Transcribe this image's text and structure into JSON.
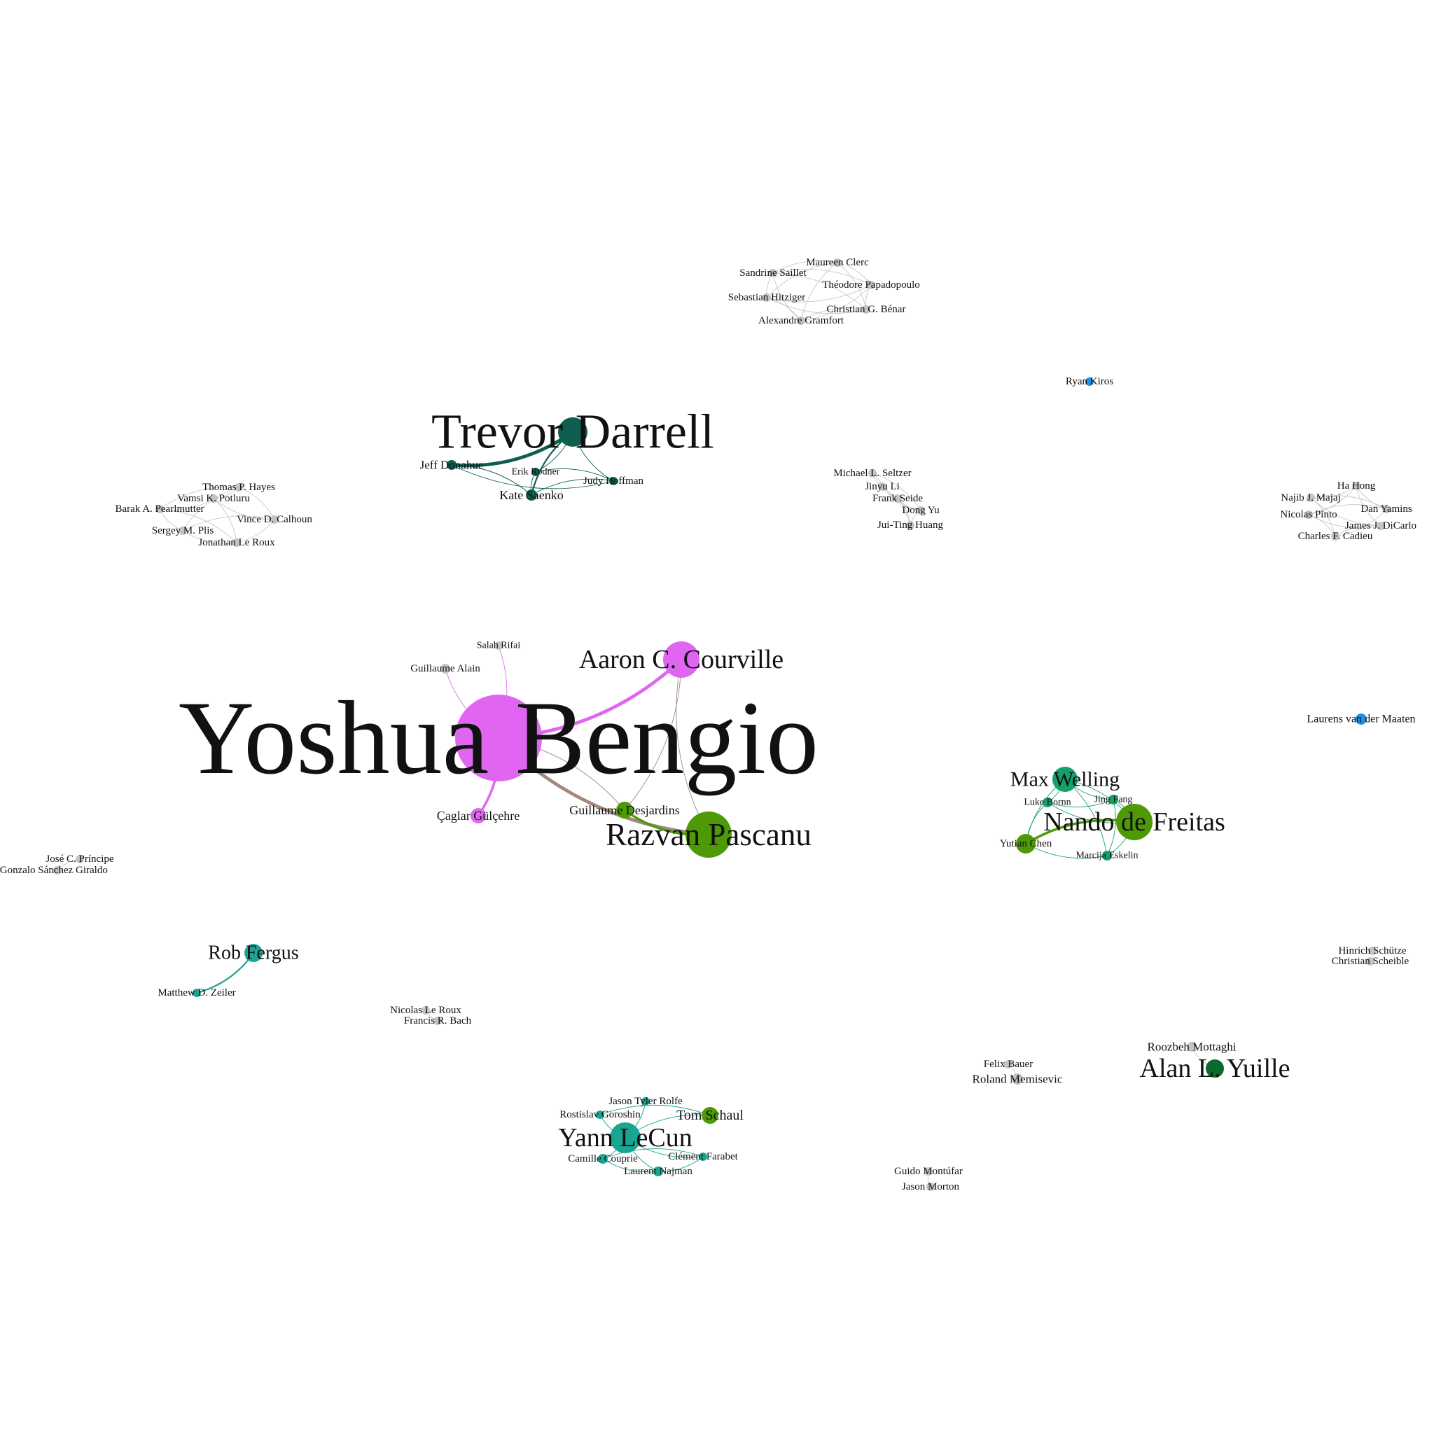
{
  "colors": {
    "background": "#ffffff",
    "gray": "#c4c4c4",
    "grayEdge": "#c8c8c8",
    "magenta": "#e066f2",
    "darkTeal": "#0e5f4f",
    "olive": "#4e9a06",
    "teal": "#1aa592",
    "green": "#15a06a",
    "darkGreen": "#0b6b2e",
    "blue": "#1e90e6",
    "brown": "#a2897e"
  },
  "nodes": [
    {
      "id": "bengio",
      "label": "Yoshua Bengio",
      "group": "magenta"
    },
    {
      "id": "courville",
      "label": "Aaron C. Courville",
      "group": "magenta"
    },
    {
      "id": "gulcehre",
      "label": "Çaglar Gülçehre",
      "group": "magenta"
    },
    {
      "id": "rifai",
      "label": "Salah Rifai",
      "group": "gray"
    },
    {
      "id": "alain",
      "label": "Guillaume Alain",
      "group": "gray"
    },
    {
      "id": "pascanu",
      "label": "Razvan Pascanu",
      "group": "olive"
    },
    {
      "id": "desjardins",
      "label": "Guillaume Desjardins",
      "group": "olive"
    },
    {
      "id": "darrell",
      "label": "Trevor Darrell",
      "group": "darkTeal"
    },
    {
      "id": "donahue",
      "label": "Jeff Donahue",
      "group": "darkTeal"
    },
    {
      "id": "rodner",
      "label": "Erik Rodner",
      "group": "darkTeal"
    },
    {
      "id": "saenko",
      "label": "Kate Saenko",
      "group": "darkTeal"
    },
    {
      "id": "hoffman",
      "label": "Judy Hoffman",
      "group": "darkTeal"
    },
    {
      "id": "clerc",
      "label": "Maureen Clerc",
      "group": "gray"
    },
    {
      "id": "saillet",
      "label": "Sandrine Saillet",
      "group": "gray"
    },
    {
      "id": "papadopoulo",
      "label": "Théodore Papadopoulo",
      "group": "gray"
    },
    {
      "id": "hitziger",
      "label": "Sebastian Hitziger",
      "group": "gray"
    },
    {
      "id": "benar",
      "label": "Christian G. Bénar",
      "group": "gray"
    },
    {
      "id": "gramfort",
      "label": "Alexandre Gramfort",
      "group": "gray"
    },
    {
      "id": "kiros",
      "label": "Ryan Kiros",
      "group": "blue"
    },
    {
      "id": "maaten",
      "label": "Laurens van der Maaten",
      "group": "blue"
    },
    {
      "id": "hayes",
      "label": "Thomas P. Hayes",
      "group": "gray"
    },
    {
      "id": "potluru",
      "label": "Vamsi K. Potluru",
      "group": "gray"
    },
    {
      "id": "pearlmutter",
      "label": "Barak A. Pearlmutter",
      "group": "gray"
    },
    {
      "id": "calhoun",
      "label": "Vince D. Calhoun",
      "group": "gray"
    },
    {
      "id": "plis",
      "label": "Sergey M. Plis",
      "group": "gray"
    },
    {
      "id": "leroux_j",
      "label": "Jonathan Le Roux",
      "group": "gray"
    },
    {
      "id": "seltzer",
      "label": "Michael L. Seltzer",
      "group": "gray"
    },
    {
      "id": "jinyuli",
      "label": "Jinyu Li",
      "group": "gray"
    },
    {
      "id": "seide",
      "label": "Frank Seide",
      "group": "gray"
    },
    {
      "id": "dongyu",
      "label": "Dong Yu",
      "group": "gray"
    },
    {
      "id": "huang",
      "label": "Jui-Ting Huang",
      "group": "gray"
    },
    {
      "id": "hahong",
      "label": "Ha Hong",
      "group": "gray"
    },
    {
      "id": "majaj",
      "label": "Najib J. Majaj",
      "group": "gray"
    },
    {
      "id": "yamins",
      "label": "Dan Yamins",
      "group": "gray"
    },
    {
      "id": "pinto",
      "label": "Nicolas Pinto",
      "group": "gray"
    },
    {
      "id": "dicarlo",
      "label": "James J. DiCarlo",
      "group": "gray"
    },
    {
      "id": "cadieu",
      "label": "Charles F. Cadieu",
      "group": "gray"
    },
    {
      "id": "welling",
      "label": "Max Welling",
      "group": "green"
    },
    {
      "id": "bornn",
      "label": "Luke Bornn",
      "group": "green"
    },
    {
      "id": "jingfang",
      "label": "Jing Fang",
      "group": "green"
    },
    {
      "id": "freitas",
      "label": "Nando de Freitas",
      "group": "olive"
    },
    {
      "id": "yutian",
      "label": "Yutian Chen",
      "group": "olive"
    },
    {
      "id": "eskelin",
      "label": "Marcija Eskelin",
      "group": "green"
    },
    {
      "id": "principe",
      "label": "José C. Príncipe",
      "group": "gray"
    },
    {
      "id": "giraldo",
      "label": "s Gonzalo Sánchez Giraldo",
      "group": "gray"
    },
    {
      "id": "fergus",
      "label": "Rob Fergus",
      "group": "teal"
    },
    {
      "id": "zeiler",
      "label": "Matthew D. Zeiler",
      "group": "teal"
    },
    {
      "id": "nleroux",
      "label": "Nicolas Le Roux",
      "group": "gray"
    },
    {
      "id": "bach",
      "label": "Francis R. Bach",
      "group": "gray"
    },
    {
      "id": "schutze",
      "label": "Hinrich Schütze",
      "group": "gray"
    },
    {
      "id": "scheible",
      "label": "Christian Scheible",
      "group": "gray"
    },
    {
      "id": "mottaghi",
      "label": "Roozbeh Mottaghi",
      "group": "gray"
    },
    {
      "id": "yuille",
      "label": "Alan L. Yuille",
      "group": "darkGreen"
    },
    {
      "id": "bauer",
      "label": "Felix Bauer",
      "group": "gray"
    },
    {
      "id": "memisevic",
      "label": "Roland Memisevic",
      "group": "gray"
    },
    {
      "id": "rolfe",
      "label": "Jason Tyler Rolfe",
      "group": "teal"
    },
    {
      "id": "goroshin",
      "label": "Rostislav Goroshin",
      "group": "teal"
    },
    {
      "id": "schaul",
      "label": "Tom Schaul",
      "group": "olive"
    },
    {
      "id": "lecun",
      "label": "Yann LeCun",
      "group": "teal"
    },
    {
      "id": "farabet",
      "label": "Clément Farabet",
      "group": "teal"
    },
    {
      "id": "couprie",
      "label": "Camille Couprie",
      "group": "teal"
    },
    {
      "id": "najman",
      "label": "Laurent Najman",
      "group": "teal"
    },
    {
      "id": "montufar",
      "label": "Guido Montúfar",
      "group": "gray"
    },
    {
      "id": "morton",
      "label": "Jason Morton",
      "group": "gray"
    }
  ],
  "edges": [
    {
      "source": "bengio",
      "target": "courville",
      "weight": 4,
      "color": "magenta"
    },
    {
      "source": "bengio",
      "target": "gulcehre",
      "weight": 3,
      "color": "magenta"
    },
    {
      "source": "bengio",
      "target": "rifai",
      "weight": 1,
      "color": "magenta"
    },
    {
      "source": "bengio",
      "target": "alain",
      "weight": 1,
      "color": "magenta"
    },
    {
      "source": "bengio",
      "target": "pascanu",
      "weight": 4,
      "color": "brown"
    },
    {
      "source": "bengio",
      "target": "desjardins",
      "weight": 1,
      "color": "brown"
    },
    {
      "source": "courville",
      "target": "pascanu",
      "weight": 1,
      "color": "brown"
    },
    {
      "source": "courville",
      "target": "desjardins",
      "weight": 1,
      "color": "brown"
    },
    {
      "source": "desjardins",
      "target": "pascanu",
      "weight": 3,
      "color": "olive"
    },
    {
      "source": "darrell",
      "target": "donahue",
      "weight": 4,
      "color": "darkTeal"
    },
    {
      "source": "darrell",
      "target": "saenko",
      "weight": 2,
      "color": "darkTeal"
    },
    {
      "source": "darrell",
      "target": "rodner",
      "weight": 1,
      "color": "darkTeal"
    },
    {
      "source": "darrell",
      "target": "hoffman",
      "weight": 1,
      "color": "darkTeal"
    },
    {
      "source": "donahue",
      "target": "saenko",
      "weight": 1,
      "color": "darkTeal"
    },
    {
      "source": "donahue",
      "target": "hoffman",
      "weight": 1,
      "color": "darkTeal"
    },
    {
      "source": "saenko",
      "target": "hoffman",
      "weight": 1,
      "color": "darkTeal"
    },
    {
      "source": "rodner",
      "target": "saenko",
      "weight": 1,
      "color": "darkTeal"
    },
    {
      "source": "rodner",
      "target": "hoffman",
      "weight": 1,
      "color": "darkTeal"
    },
    {
      "source": "clerc",
      "target": "saillet",
      "weight": 1,
      "color": "grayEdge"
    },
    {
      "source": "clerc",
      "target": "papadopoulo",
      "weight": 1,
      "color": "grayEdge"
    },
    {
      "source": "clerc",
      "target": "hitziger",
      "weight": 1,
      "color": "grayEdge"
    },
    {
      "source": "clerc",
      "target": "benar",
      "weight": 1,
      "color": "grayEdge"
    },
    {
      "source": "clerc",
      "target": "gramfort",
      "weight": 1,
      "color": "grayEdge"
    },
    {
      "source": "saillet",
      "target": "papadopoulo",
      "weight": 1,
      "color": "grayEdge"
    },
    {
      "source": "saillet",
      "target": "hitziger",
      "weight": 1,
      "color": "grayEdge"
    },
    {
      "source": "saillet",
      "target": "benar",
      "weight": 1,
      "color": "grayEdge"
    },
    {
      "source": "saillet",
      "target": "gramfort",
      "weight": 1,
      "color": "grayEdge"
    },
    {
      "source": "papadopoulo",
      "target": "hitziger",
      "weight": 1,
      "color": "grayEdge"
    },
    {
      "source": "papadopoulo",
      "target": "benar",
      "weight": 1,
      "color": "grayEdge"
    },
    {
      "source": "papadopoulo",
      "target": "gramfort",
      "weight": 1,
      "color": "grayEdge"
    },
    {
      "source": "hitziger",
      "target": "benar",
      "weight": 1,
      "color": "grayEdge"
    },
    {
      "source": "hitziger",
      "target": "gramfort",
      "weight": 1,
      "color": "grayEdge"
    },
    {
      "source": "benar",
      "target": "gramfort",
      "weight": 1,
      "color": "grayEdge"
    },
    {
      "source": "hayes",
      "target": "potluru",
      "weight": 1,
      "color": "grayEdge"
    },
    {
      "source": "hayes",
      "target": "pearlmutter",
      "weight": 1,
      "color": "grayEdge"
    },
    {
      "source": "hayes",
      "target": "calhoun",
      "weight": 1,
      "color": "grayEdge"
    },
    {
      "source": "hayes",
      "target": "plis",
      "weight": 1,
      "color": "grayEdge"
    },
    {
      "source": "potluru",
      "target": "pearlmutter",
      "weight": 1,
      "color": "grayEdge"
    },
    {
      "source": "potluru",
      "target": "calhoun",
      "weight": 1,
      "color": "grayEdge"
    },
    {
      "source": "potluru",
      "target": "leroux_j",
      "weight": 1,
      "color": "grayEdge"
    },
    {
      "source": "pearlmutter",
      "target": "plis",
      "weight": 1,
      "color": "grayEdge"
    },
    {
      "source": "pearlmutter",
      "target": "leroux_j",
      "weight": 1,
      "color": "grayEdge"
    },
    {
      "source": "calhoun",
      "target": "plis",
      "weight": 1,
      "color": "grayEdge"
    },
    {
      "source": "calhoun",
      "target": "leroux_j",
      "weight": 1,
      "color": "grayEdge"
    },
    {
      "source": "plis",
      "target": "leroux_j",
      "weight": 1,
      "color": "grayEdge"
    },
    {
      "source": "seltzer",
      "target": "jinyuli",
      "weight": 1,
      "color": "grayEdge"
    },
    {
      "source": "seltzer",
      "target": "seide",
      "weight": 1,
      "color": "grayEdge"
    },
    {
      "source": "seltzer",
      "target": "dongyu",
      "weight": 1,
      "color": "grayEdge"
    },
    {
      "source": "jinyuli",
      "target": "dongyu",
      "weight": 1,
      "color": "grayEdge"
    },
    {
      "source": "jinyuli",
      "target": "huang",
      "weight": 1,
      "color": "grayEdge"
    },
    {
      "source": "seide",
      "target": "dongyu",
      "weight": 1,
      "color": "grayEdge"
    },
    {
      "source": "seide",
      "target": "huang",
      "weight": 1,
      "color": "grayEdge"
    },
    {
      "source": "dongyu",
      "target": "huang",
      "weight": 1,
      "color": "grayEdge"
    },
    {
      "source": "hahong",
      "target": "majaj",
      "weight": 1,
      "color": "grayEdge"
    },
    {
      "source": "hahong",
      "target": "yamins",
      "weight": 1,
      "color": "grayEdge"
    },
    {
      "source": "hahong",
      "target": "pinto",
      "weight": 1,
      "color": "grayEdge"
    },
    {
      "source": "hahong",
      "target": "dicarlo",
      "weight": 1,
      "color": "grayEdge"
    },
    {
      "source": "majaj",
      "target": "yamins",
      "weight": 1,
      "color": "grayEdge"
    },
    {
      "source": "majaj",
      "target": "dicarlo",
      "weight": 1,
      "color": "grayEdge"
    },
    {
      "source": "majaj",
      "target": "cadieu",
      "weight": 1,
      "color": "grayEdge"
    },
    {
      "source": "yamins",
      "target": "pinto",
      "weight": 1,
      "color": "grayEdge"
    },
    {
      "source": "yamins",
      "target": "cadieu",
      "weight": 1,
      "color": "grayEdge"
    },
    {
      "source": "pinto",
      "target": "dicarlo",
      "weight": 1,
      "color": "grayEdge"
    },
    {
      "source": "pinto",
      "target": "cadieu",
      "weight": 1,
      "color": "grayEdge"
    },
    {
      "source": "dicarlo",
      "target": "cadieu",
      "weight": 1,
      "color": "grayEdge"
    },
    {
      "source": "welling",
      "target": "freitas",
      "weight": 1,
      "color": "green"
    },
    {
      "source": "welling",
      "target": "yutian",
      "weight": 1,
      "color": "green"
    },
    {
      "source": "welling",
      "target": "bornn",
      "weight": 1,
      "color": "green"
    },
    {
      "source": "welling",
      "target": "jingfang",
      "weight": 1,
      "color": "green"
    },
    {
      "source": "welling",
      "target": "eskelin",
      "weight": 1,
      "color": "green"
    },
    {
      "source": "freitas",
      "target": "yutian",
      "weight": 3,
      "color": "olive"
    },
    {
      "source": "freitas",
      "target": "bornn",
      "weight": 1,
      "color": "green"
    },
    {
      "source": "freitas",
      "target": "jingfang",
      "weight": 1,
      "color": "green"
    },
    {
      "source": "freitas",
      "target": "eskelin",
      "weight": 1,
      "color": "green"
    },
    {
      "source": "yutian",
      "target": "eskelin",
      "weight": 1,
      "color": "green"
    },
    {
      "source": "yutian",
      "target": "bornn",
      "weight": 1,
      "color": "green"
    },
    {
      "source": "bornn",
      "target": "jingfang",
      "weight": 1,
      "color": "green"
    },
    {
      "source": "jingfang",
      "target": "eskelin",
      "weight": 1,
      "color": "green"
    },
    {
      "source": "principe",
      "target": "giraldo",
      "weight": 1,
      "color": "grayEdge"
    },
    {
      "source": "fergus",
      "target": "zeiler",
      "weight": 2,
      "color": "teal"
    },
    {
      "source": "nleroux",
      "target": "bach",
      "weight": 1,
      "color": "grayEdge"
    },
    {
      "source": "schutze",
      "target": "scheible",
      "weight": 1,
      "color": "grayEdge"
    },
    {
      "source": "mottaghi",
      "target": "yuille",
      "weight": 1,
      "color": "grayEdge"
    },
    {
      "source": "bauer",
      "target": "memisevic",
      "weight": 1,
      "color": "grayEdge"
    },
    {
      "source": "montufar",
      "target": "morton",
      "weight": 1,
      "color": "grayEdge"
    },
    {
      "source": "lecun",
      "target": "goroshin",
      "weight": 1,
      "color": "teal"
    },
    {
      "source": "lecun",
      "target": "rolfe",
      "weight": 1,
      "color": "teal"
    },
    {
      "source": "lecun",
      "target": "schaul",
      "weight": 1,
      "color": "teal"
    },
    {
      "source": "lecun",
      "target": "farabet",
      "weight": 1,
      "color": "teal"
    },
    {
      "source": "lecun",
      "target": "couprie",
      "weight": 1,
      "color": "teal"
    },
    {
      "source": "lecun",
      "target": "najman",
      "weight": 1,
      "color": "teal"
    },
    {
      "source": "goroshin",
      "target": "schaul",
      "weight": 1,
      "color": "teal"
    },
    {
      "source": "farabet",
      "target": "couprie",
      "weight": 1,
      "color": "teal"
    },
    {
      "source": "farabet",
      "target": "najman",
      "weight": 1,
      "color": "teal"
    },
    {
      "source": "couprie",
      "target": "najman",
      "weight": 1,
      "color": "teal"
    }
  ]
}
